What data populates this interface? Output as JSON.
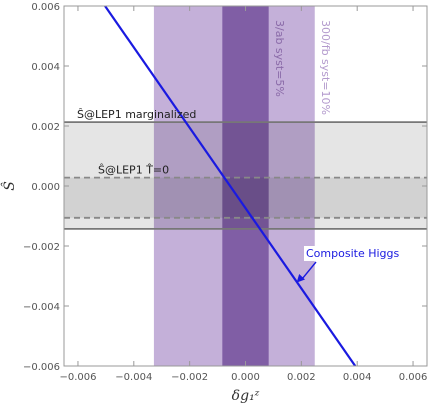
{
  "chart_data": {
    "type": "line",
    "xlabel": "δg₁ᶻ",
    "ylabel": "Ŝ",
    "xlim": [
      -0.0065,
      0.0065
    ],
    "ylim": [
      -0.006,
      0.006
    ],
    "x_ticks": [
      -0.006,
      -0.004,
      -0.002,
      0.0,
      0.002,
      0.004,
      0.006
    ],
    "x_tick_labels": [
      "−0.006",
      "−0.004",
      "−0.002",
      "0.000",
      "0.002",
      "0.004",
      "0.006"
    ],
    "y_ticks": [
      -0.006,
      -0.004,
      -0.002,
      0.0,
      0.002,
      0.004,
      0.006
    ],
    "y_tick_labels": [
      "−0.006",
      "−0.004",
      "−0.002",
      "0.000",
      "0.002",
      "0.004",
      "0.006"
    ],
    "grid": false,
    "horizontal_bands": [
      {
        "label": "Ŝ@LEP1 marginalized",
        "y": [
          -0.00143,
          0.00213
        ],
        "fill": "#e5e5e5",
        "edge": "#777777",
        "style": "solid"
      },
      {
        "label": "Ŝ@LEP1 T̂=0",
        "y": [
          -0.00106,
          0.00028
        ],
        "fill": "#d2d2d2",
        "edge": "#888888",
        "style": "dashed"
      }
    ],
    "vertical_bands": [
      {
        "label": "300/fb syst=10%",
        "x": [
          -0.00328,
          0.00248
        ],
        "color": "#c4b0d9",
        "label_color": "#b39acd"
      },
      {
        "label": "3/ab syst=5%",
        "x": [
          -0.00083,
          0.00083
        ],
        "color": "#a688c2",
        "label_color": "#8a6aa8"
      }
    ],
    "series": [
      {
        "name": "Composite Higgs",
        "x": [
          -0.00503,
          0.00393
        ],
        "y": [
          0.006,
          -0.006
        ],
        "color": "#1a1ae0"
      }
    ],
    "annotations": [
      {
        "text": "Composite Higgs",
        "arrow_to": [
          0.00183,
          -0.00322
        ]
      }
    ]
  }
}
